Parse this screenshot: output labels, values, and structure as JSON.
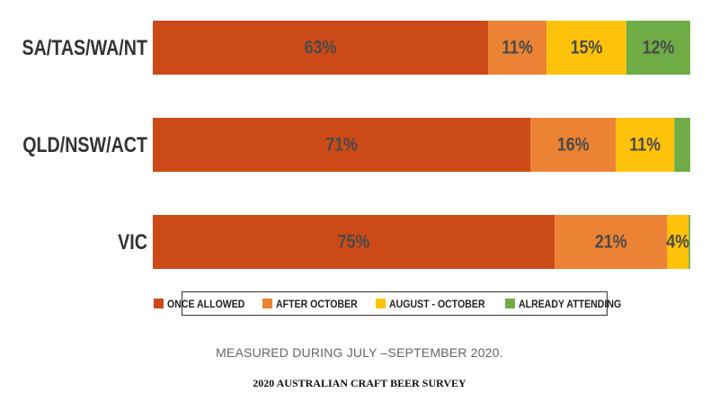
{
  "chart_data": {
    "type": "bar",
    "orientation": "horizontal",
    "stacked": true,
    "categories": [
      "SA/TAS/WA/NT",
      "QLD/NSW/ACT",
      "VIC"
    ],
    "series": [
      {
        "name": "ONCE ALLOWED",
        "color": "#cc4a17",
        "values": [
          63,
          71,
          75
        ],
        "labels": [
          "63%",
          "71%",
          "75%"
        ]
      },
      {
        "name": "AFTER OCTOBER",
        "color": "#ec8233",
        "values": [
          11,
          16,
          21
        ],
        "labels": [
          "11%",
          "16%",
          "21%"
        ]
      },
      {
        "name": "AUGUST - OCTOBER",
        "color": "#ffc20a",
        "values": [
          15,
          11,
          4
        ],
        "labels": [
          "15%",
          "11%",
          "4%"
        ]
      },
      {
        "name": "ALREADY ATTENDING",
        "color": "#6fac46",
        "values": [
          12,
          3,
          0.3
        ],
        "labels": [
          "12%",
          "",
          ""
        ]
      }
    ],
    "xlim": [
      0,
      100
    ],
    "grid": false,
    "legend_position": "bottom"
  },
  "note": "MEASURED DURING JULY –SEPTEMBER 2020.",
  "footer_title": "2020 AUSTRALIAN CRAFT BEER SURVEY"
}
